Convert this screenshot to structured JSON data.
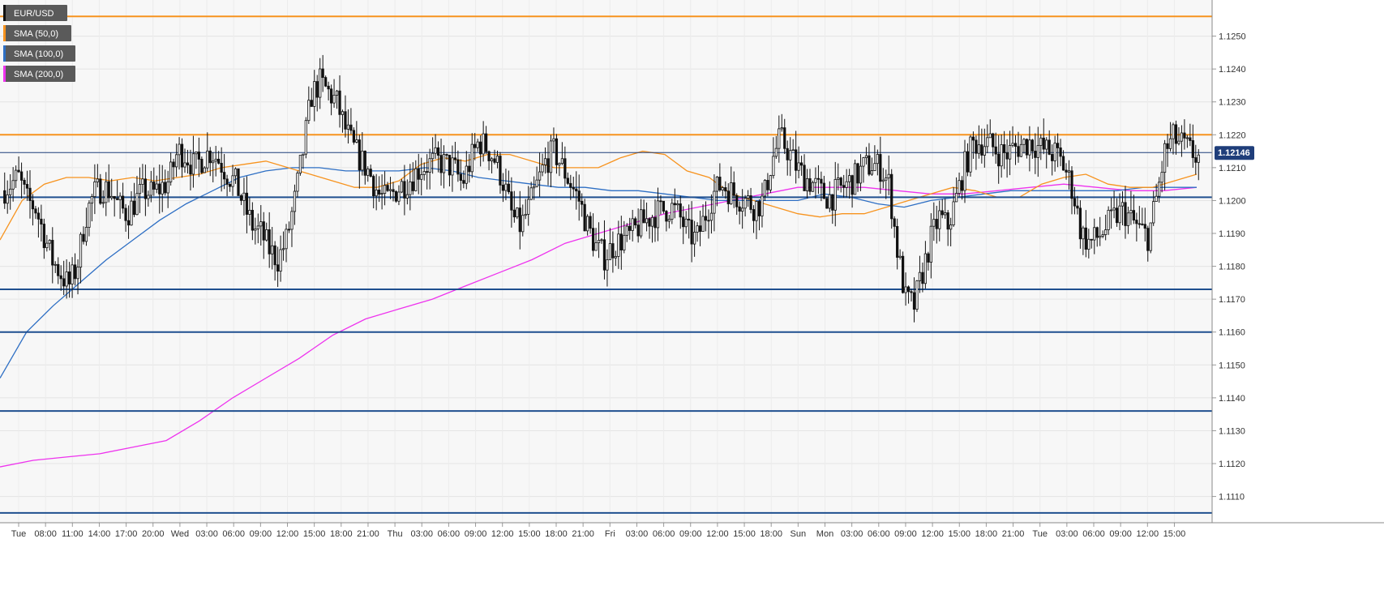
{
  "chart_data": {
    "type": "candlestick",
    "symbol": "EUR/USD",
    "current_price": "1.12146",
    "y_range": [
      1.11,
      1.126
    ],
    "y_ticks": [
      "1.1250",
      "1.1240",
      "1.1230",
      "1.1220",
      "1.1210",
      "1.1200",
      "1.1190",
      "1.1180",
      "1.1170",
      "1.1160",
      "1.1150",
      "1.1140",
      "1.1130",
      "1.1120",
      "1.1110"
    ],
    "x_ticks": [
      "Tue",
      "08:00",
      "11:00",
      "14:00",
      "17:00",
      "20:00",
      "Wed",
      "03:00",
      "06:00",
      "09:00",
      "12:00",
      "15:00",
      "18:00",
      "21:00",
      "Thu",
      "03:00",
      "06:00",
      "09:00",
      "12:00",
      "15:00",
      "18:00",
      "21:00",
      "Fri",
      "03:00",
      "06:00",
      "09:00",
      "12:00",
      "15:00",
      "18:00",
      "Sun",
      "Mon",
      "03:00",
      "06:00",
      "09:00",
      "12:00",
      "15:00",
      "18:00",
      "21:00",
      "Tue",
      "03:00",
      "06:00",
      "09:00",
      "12:00",
      "15:00"
    ],
    "legend": [
      {
        "label": "EUR/USD",
        "color": "#111111"
      },
      {
        "label": "SMA (50,0)",
        "color": "#f7931e"
      },
      {
        "label": "SMA (100,0)",
        "color": "#2e6fc4"
      },
      {
        "label": "SMA (200,0)",
        "color": "#ee33ee"
      }
    ],
    "horizontal_levels": [
      {
        "price": 1.1256,
        "color": "#f7931e"
      },
      {
        "price": 1.122,
        "color": "#f7931e"
      },
      {
        "price": 1.12146,
        "color": "#1f3e7a"
      },
      {
        "price": 1.1201,
        "color": "#1f4f8f"
      },
      {
        "price": 1.1173,
        "color": "#1f4f8f"
      },
      {
        "price": 1.116,
        "color": "#1f4f8f"
      },
      {
        "price": 1.1136,
        "color": "#1f4f8f"
      },
      {
        "price": 1.1105,
        "color": "#1f4f8f"
      }
    ],
    "price_path": [
      1.1203,
      1.1205,
      1.1207,
      1.12,
      1.1198,
      1.119,
      1.1182,
      1.1178,
      1.1174,
      1.118,
      1.1195,
      1.1202,
      1.1204,
      1.1203,
      1.1198,
      1.1196,
      1.12,
      1.1203,
      1.1202,
      1.1204,
      1.1206,
      1.1215,
      1.1214,
      1.121,
      1.1213,
      1.1215,
      1.1212,
      1.1208,
      1.1205,
      1.1198,
      1.1192,
      1.119,
      1.1185,
      1.1182,
      1.1188,
      1.12,
      1.1215,
      1.1232,
      1.1236,
      1.1233,
      1.123,
      1.1222,
      1.1216,
      1.1212,
      1.1208,
      1.1202,
      1.12,
      1.1203,
      1.1205,
      1.1207,
      1.121,
      1.1211,
      1.1212,
      1.1211,
      1.121,
      1.1205,
      1.1212,
      1.1218,
      1.1216,
      1.1212,
      1.1205,
      1.1195,
      1.1192,
      1.1198,
      1.1205,
      1.1212,
      1.1215,
      1.121,
      1.1205,
      1.12,
      1.1192,
      1.1186,
      1.1183,
      1.1186,
      1.1188,
      1.1189,
      1.1192,
      1.1194,
      1.1196,
      1.1197,
      1.1198,
      1.1195,
      1.119,
      1.1188,
      1.1195,
      1.1202,
      1.1205,
      1.1203,
      1.1201,
      1.12,
      1.1198,
      1.12,
      1.1212,
      1.1219,
      1.1215,
      1.121,
      1.1207,
      1.1205,
      1.1202,
      1.1201,
      1.1203,
      1.1205,
      1.1207,
      1.121,
      1.1211,
      1.121,
      1.1205,
      1.1185,
      1.117,
      1.1168,
      1.1178,
      1.1188,
      1.1195,
      1.1192,
      1.12,
      1.121,
      1.1217,
      1.1218,
      1.1217,
      1.1215,
      1.1214,
      1.1216,
      1.1217,
      1.1218,
      1.1216,
      1.1215,
      1.1214,
      1.121,
      1.1203,
      1.119,
      1.1187,
      1.1189,
      1.1192,
      1.1195,
      1.1197,
      1.1194,
      1.1191,
      1.1189,
      1.1201,
      1.1215,
      1.1219,
      1.1217,
      1.1215,
      1.1213
    ],
    "sma50": [
      1.1188,
      1.12,
      1.1205,
      1.1207,
      1.1207,
      1.1206,
      1.1207,
      1.1206,
      1.1207,
      1.1208,
      1.121,
      1.1211,
      1.1212,
      1.121,
      1.1208,
      1.1206,
      1.1204,
      1.1204,
      1.1206,
      1.1211,
      1.1213,
      1.1212,
      1.1214,
      1.1214,
      1.1212,
      1.121,
      1.121,
      1.121,
      1.1213,
      1.1215,
      1.1214,
      1.1209,
      1.1207,
      1.1202,
      1.12,
      1.1198,
      1.1196,
      1.1195,
      1.1196,
      1.1196,
      1.1198,
      1.12,
      1.1202,
      1.1204,
      1.1203,
      1.1201,
      1.1201,
      1.1205,
      1.1207,
      1.1208,
      1.1205,
      1.1204,
      1.1204,
      1.1206,
      1.1208
    ],
    "sma100": [
      1.1146,
      1.116,
      1.1168,
      1.1175,
      1.1182,
      1.1188,
      1.1194,
      1.1199,
      1.1203,
      1.1207,
      1.1209,
      1.121,
      1.121,
      1.1209,
      1.1209,
      1.1209,
      1.121,
      1.1209,
      1.1207,
      1.1206,
      1.1205,
      1.1204,
      1.1204,
      1.1203,
      1.1203,
      1.1202,
      1.1201,
      1.12,
      1.12,
      1.12,
      1.12,
      1.1202,
      1.1201,
      1.1199,
      1.1198,
      1.12,
      1.1201,
      1.1202,
      1.1203,
      1.1203,
      1.1203,
      1.1203,
      1.1203,
      1.1204,
      1.1204,
      1.1204
    ],
    "sma200": [
      1.1119,
      1.1121,
      1.1122,
      1.1123,
      1.1125,
      1.1127,
      1.1133,
      1.114,
      1.1146,
      1.1152,
      1.1159,
      1.1164,
      1.1167,
      1.117,
      1.1174,
      1.1178,
      1.1182,
      1.1187,
      1.119,
      1.1193,
      1.1196,
      1.1198,
      1.12,
      1.1202,
      1.1204,
      1.1204,
      1.1204,
      1.1203,
      1.1202,
      1.1202,
      1.1203,
      1.1204,
      1.1205,
      1.1204,
      1.1203,
      1.1203,
      1.1204
    ]
  }
}
